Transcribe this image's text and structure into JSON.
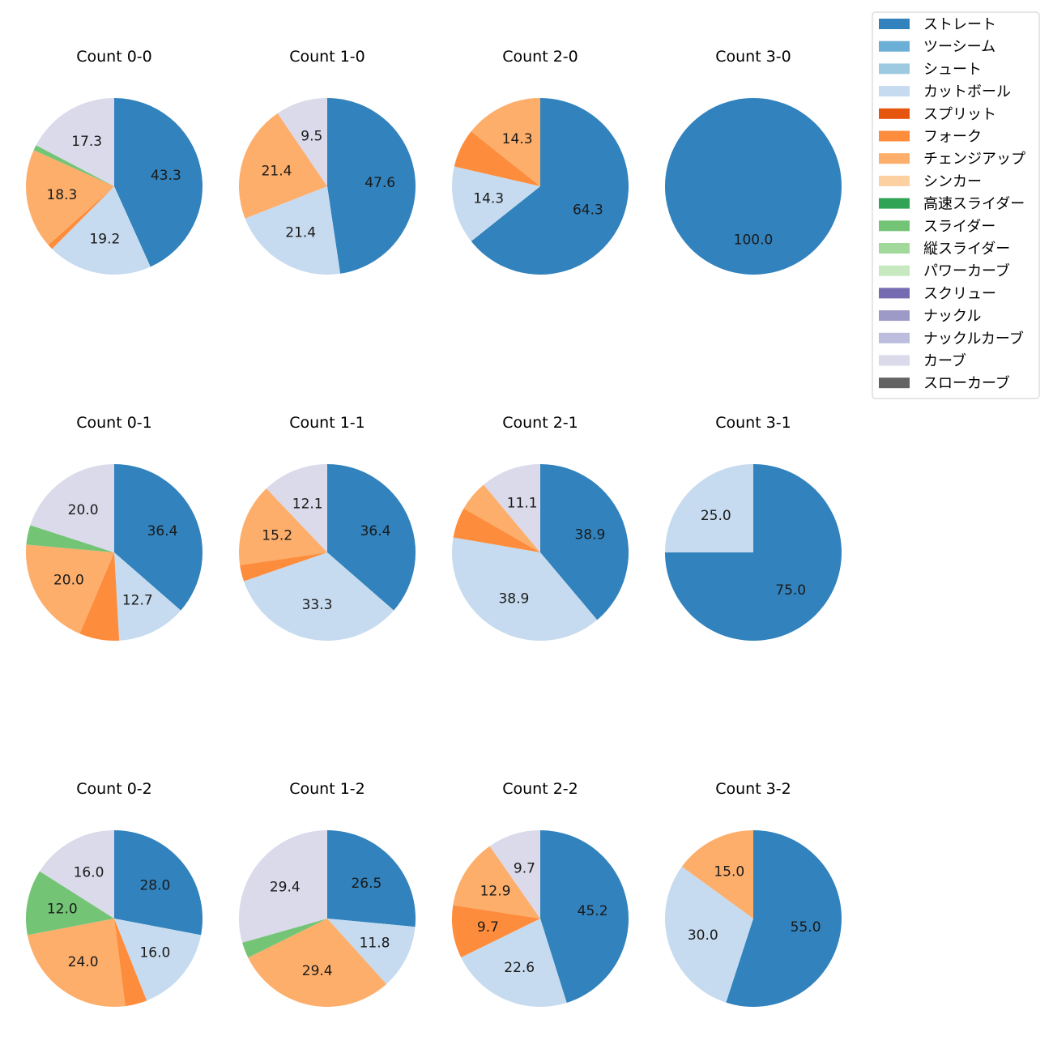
{
  "legend": {
    "items": [
      {
        "label": "ストレート",
        "color": "#3182bd"
      },
      {
        "label": "ツーシーム",
        "color": "#6baed6"
      },
      {
        "label": "シュート",
        "color": "#9ecae1"
      },
      {
        "label": "カットボール",
        "color": "#c6dbef"
      },
      {
        "label": "スプリット",
        "color": "#e6550d"
      },
      {
        "label": "フォーク",
        "color": "#fd8d3c"
      },
      {
        "label": "チェンジアップ",
        "color": "#fdae6b"
      },
      {
        "label": "シンカー",
        "color": "#fdd0a2"
      },
      {
        "label": "高速スライダー",
        "color": "#31a354"
      },
      {
        "label": "スライダー",
        "color": "#74c476"
      },
      {
        "label": "縦スライダー",
        "color": "#a1d99b"
      },
      {
        "label": "パワーカーブ",
        "color": "#c7e9c0"
      },
      {
        "label": "スクリュー",
        "color": "#756bb1"
      },
      {
        "label": "ナックル",
        "color": "#9e9ac8"
      },
      {
        "label": "ナックルカーブ",
        "color": "#bcbddc"
      },
      {
        "label": "カーブ",
        "color": "#dadaeb"
      },
      {
        "label": "スローカーブ",
        "color": "#636363"
      }
    ]
  },
  "chart_data": [
    {
      "type": "pie",
      "title": "Count 0-0",
      "slices": [
        {
          "pitch": "ストレート",
          "value": 43.3,
          "label": "43.3"
        },
        {
          "pitch": "カットボール",
          "value": 19.2,
          "label": "19.2"
        },
        {
          "pitch": "フォーク",
          "value": 1.0,
          "label": ""
        },
        {
          "pitch": "チェンジアップ",
          "value": 18.3,
          "label": "18.3"
        },
        {
          "pitch": "スライダー",
          "value": 1.0,
          "label": ""
        },
        {
          "pitch": "カーブ",
          "value": 17.3,
          "label": "17.3"
        }
      ]
    },
    {
      "type": "pie",
      "title": "Count 1-0",
      "slices": [
        {
          "pitch": "ストレート",
          "value": 47.6,
          "label": "47.6"
        },
        {
          "pitch": "カットボール",
          "value": 21.4,
          "label": "21.4"
        },
        {
          "pitch": "チェンジアップ",
          "value": 21.4,
          "label": "21.4"
        },
        {
          "pitch": "カーブ",
          "value": 9.5,
          "label": "9.5"
        }
      ]
    },
    {
      "type": "pie",
      "title": "Count 2-0",
      "slices": [
        {
          "pitch": "ストレート",
          "value": 64.3,
          "label": "64.3"
        },
        {
          "pitch": "カットボール",
          "value": 14.3,
          "label": "14.3"
        },
        {
          "pitch": "フォーク",
          "value": 7.1,
          "label": ""
        },
        {
          "pitch": "チェンジアップ",
          "value": 14.3,
          "label": "14.3"
        }
      ]
    },
    {
      "type": "pie",
      "title": "Count 3-0",
      "slices": [
        {
          "pitch": "ストレート",
          "value": 100.0,
          "label": "100.0"
        }
      ]
    },
    {
      "type": "pie",
      "title": "Count 0-1",
      "slices": [
        {
          "pitch": "ストレート",
          "value": 36.4,
          "label": "36.4"
        },
        {
          "pitch": "カットボール",
          "value": 12.7,
          "label": "12.7"
        },
        {
          "pitch": "フォーク",
          "value": 7.3,
          "label": ""
        },
        {
          "pitch": "チェンジアップ",
          "value": 20.0,
          "label": "20.0"
        },
        {
          "pitch": "スライダー",
          "value": 3.6,
          "label": ""
        },
        {
          "pitch": "カーブ",
          "value": 20.0,
          "label": "20.0"
        }
      ]
    },
    {
      "type": "pie",
      "title": "Count 1-1",
      "slices": [
        {
          "pitch": "ストレート",
          "value": 36.4,
          "label": "36.4"
        },
        {
          "pitch": "カットボール",
          "value": 33.3,
          "label": "33.3"
        },
        {
          "pitch": "フォーク",
          "value": 3.0,
          "label": ""
        },
        {
          "pitch": "チェンジアップ",
          "value": 15.2,
          "label": "15.2"
        },
        {
          "pitch": "カーブ",
          "value": 12.1,
          "label": "12.1"
        }
      ]
    },
    {
      "type": "pie",
      "title": "Count 2-1",
      "slices": [
        {
          "pitch": "ストレート",
          "value": 38.9,
          "label": "38.9"
        },
        {
          "pitch": "カットボール",
          "value": 38.9,
          "label": "38.9"
        },
        {
          "pitch": "フォーク",
          "value": 5.6,
          "label": ""
        },
        {
          "pitch": "チェンジアップ",
          "value": 5.6,
          "label": ""
        },
        {
          "pitch": "カーブ",
          "value": 11.1,
          "label": "11.1"
        }
      ]
    },
    {
      "type": "pie",
      "title": "Count 3-1",
      "slices": [
        {
          "pitch": "ストレート",
          "value": 75.0,
          "label": "75.0"
        },
        {
          "pitch": "カットボール",
          "value": 25.0,
          "label": "25.0"
        }
      ]
    },
    {
      "type": "pie",
      "title": "Count 0-2",
      "slices": [
        {
          "pitch": "ストレート",
          "value": 28.0,
          "label": "28.0"
        },
        {
          "pitch": "カットボール",
          "value": 16.0,
          "label": "16.0"
        },
        {
          "pitch": "フォーク",
          "value": 4.0,
          "label": ""
        },
        {
          "pitch": "チェンジアップ",
          "value": 24.0,
          "label": "24.0"
        },
        {
          "pitch": "スライダー",
          "value": 12.0,
          "label": "12.0"
        },
        {
          "pitch": "カーブ",
          "value": 16.0,
          "label": "16.0"
        }
      ]
    },
    {
      "type": "pie",
      "title": "Count 1-2",
      "slices": [
        {
          "pitch": "ストレート",
          "value": 26.5,
          "label": "26.5"
        },
        {
          "pitch": "カットボール",
          "value": 11.8,
          "label": "11.8"
        },
        {
          "pitch": "チェンジアップ",
          "value": 29.4,
          "label": "29.4"
        },
        {
          "pitch": "スライダー",
          "value": 2.9,
          "label": ""
        },
        {
          "pitch": "カーブ",
          "value": 29.4,
          "label": "29.4"
        }
      ]
    },
    {
      "type": "pie",
      "title": "Count 2-2",
      "slices": [
        {
          "pitch": "ストレート",
          "value": 45.2,
          "label": "45.2"
        },
        {
          "pitch": "カットボール",
          "value": 22.6,
          "label": "22.6"
        },
        {
          "pitch": "フォーク",
          "value": 9.7,
          "label": "9.7"
        },
        {
          "pitch": "チェンジアップ",
          "value": 12.9,
          "label": "12.9"
        },
        {
          "pitch": "カーブ",
          "value": 9.7,
          "label": "9.7"
        }
      ]
    },
    {
      "type": "pie",
      "title": "Count 3-2",
      "slices": [
        {
          "pitch": "ストレート",
          "value": 55.0,
          "label": "55.0"
        },
        {
          "pitch": "カットボール",
          "value": 30.0,
          "label": "30.0"
        },
        {
          "pitch": "チェンジアップ",
          "value": 15.0,
          "label": "15.0"
        }
      ]
    }
  ]
}
